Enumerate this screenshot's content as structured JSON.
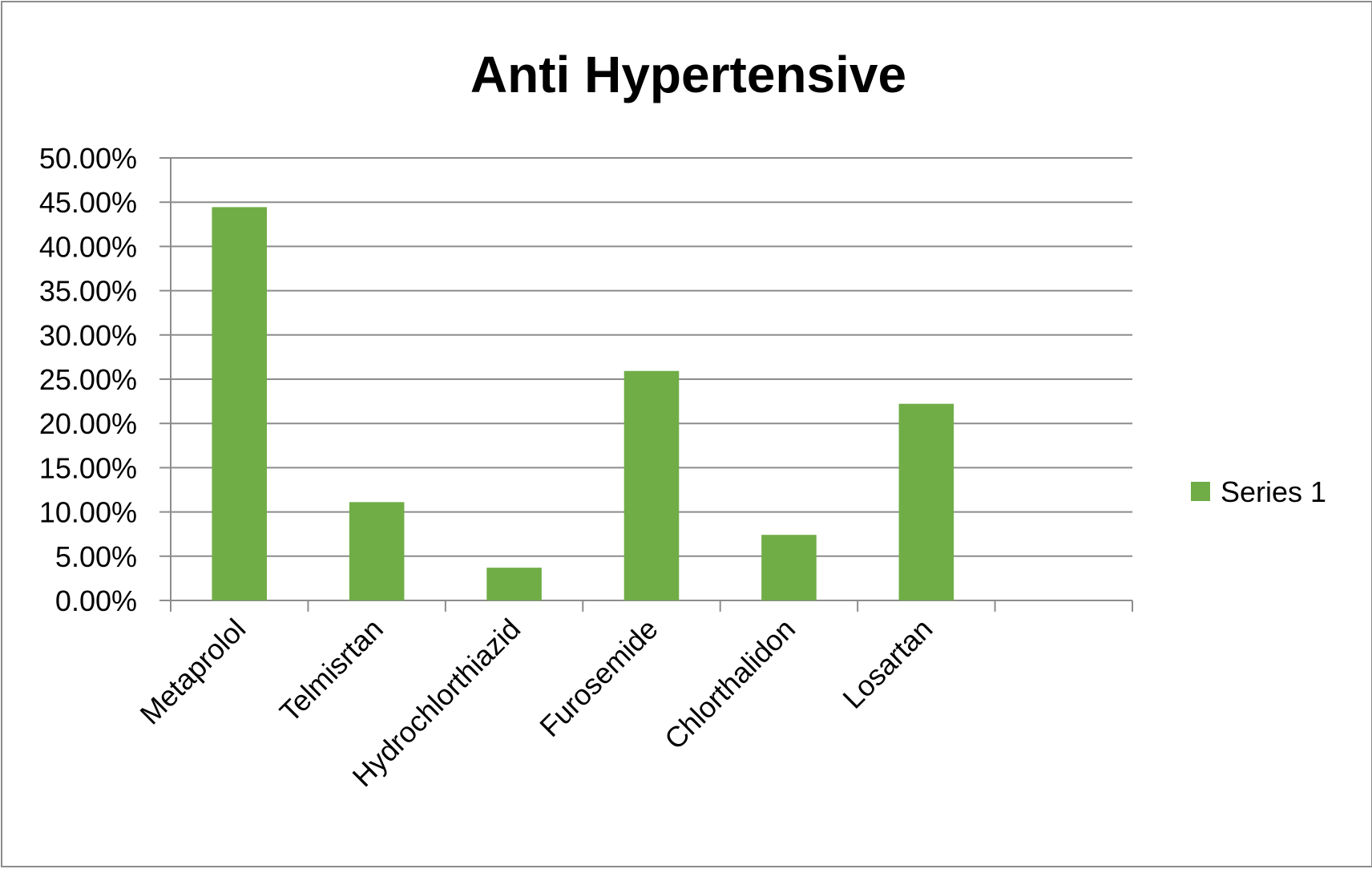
{
  "chart_data": {
    "type": "bar",
    "title": "Anti Hypertensive",
    "xlabel": "",
    "ylabel": "",
    "categories": [
      "Metaprolol",
      "Telmisrtan",
      "Hydrochlorthiazid",
      "Furosemide",
      "Chlorthalidon",
      "Losartan"
    ],
    "series": [
      {
        "name": "Series 1",
        "values": [
          44.44,
          11.11,
          3.7,
          25.93,
          7.41,
          22.22
        ],
        "color": "#70ad47"
      }
    ],
    "y_ticks": [
      "0.00%",
      "5.00%",
      "10.00%",
      "15.00%",
      "20.00%",
      "25.00%",
      "30.00%",
      "35.00%",
      "40.00%",
      "45.00%",
      "50.00%"
    ],
    "ylim": [
      0,
      50
    ],
    "category_slots": 7,
    "grid": true,
    "legend_position": "right"
  }
}
